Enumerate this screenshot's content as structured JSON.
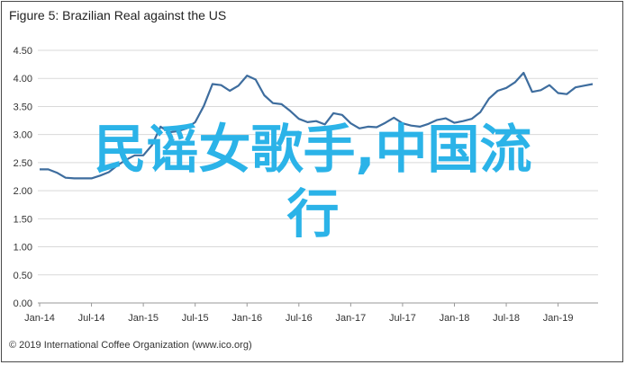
{
  "chart_data": {
    "type": "line",
    "title": "Figure 5: Brazilian Real against the US",
    "xlabel": "",
    "ylabel": "",
    "ylim": [
      0,
      4.5
    ],
    "yticks": [
      "0.00",
      "0.50",
      "1.00",
      "1.50",
      "2.00",
      "2.50",
      "3.00",
      "3.50",
      "4.00",
      "4.50"
    ],
    "xtick_labels": [
      "Jan-14",
      "Jul-14",
      "Jan-15",
      "Jul-15",
      "Jan-16",
      "Jul-16",
      "Jan-17",
      "Jul-17",
      "Jan-18",
      "Jul-18",
      "Jan-19"
    ],
    "grid": true,
    "line_color": "#3e6d9e",
    "series": [
      {
        "x": [
          "2014-01",
          "2014-02",
          "2014-03",
          "2014-04",
          "2014-05",
          "2014-06",
          "2014-07",
          "2014-08",
          "2014-09",
          "2014-10",
          "2014-11",
          "2014-12",
          "2015-01",
          "2015-02",
          "2015-03",
          "2015-04",
          "2015-05",
          "2015-06",
          "2015-07",
          "2015-08",
          "2015-09",
          "2015-10",
          "2015-11",
          "2015-12",
          "2016-01",
          "2016-02",
          "2016-03",
          "2016-04",
          "2016-05",
          "2016-06",
          "2016-07",
          "2016-08",
          "2016-09",
          "2016-10",
          "2016-11",
          "2016-12",
          "2017-01",
          "2017-02",
          "2017-03",
          "2017-04",
          "2017-05",
          "2017-06",
          "2017-07",
          "2017-08",
          "2017-09",
          "2017-10",
          "2017-11",
          "2017-12",
          "2018-01",
          "2018-02",
          "2018-03",
          "2018-04",
          "2018-05",
          "2018-06",
          "2018-07",
          "2018-08",
          "2018-09",
          "2018-10",
          "2018-11",
          "2018-12",
          "2019-01",
          "2019-02",
          "2019-03",
          "2019-04",
          "2019-05"
        ],
        "values": [
          2.38,
          2.38,
          2.32,
          2.23,
          2.22,
          2.22,
          2.22,
          2.27,
          2.33,
          2.45,
          2.55,
          2.63,
          2.63,
          2.81,
          3.14,
          3.04,
          3.06,
          3.11,
          3.22,
          3.51,
          3.9,
          3.88,
          3.78,
          3.87,
          4.05,
          3.98,
          3.7,
          3.56,
          3.54,
          3.42,
          3.28,
          3.22,
          3.24,
          3.18,
          3.38,
          3.35,
          3.2,
          3.11,
          3.14,
          3.13,
          3.21,
          3.3,
          3.2,
          3.16,
          3.14,
          3.19,
          3.26,
          3.29,
          3.21,
          3.24,
          3.28,
          3.4,
          3.64,
          3.78,
          3.83,
          3.93,
          4.1,
          3.76,
          3.79,
          3.88,
          3.74,
          3.72,
          3.84,
          3.87,
          3.9
        ]
      }
    ]
  },
  "footer": "© 2019 International Coffee Organization (www.ico.org)",
  "overlay": {
    "line1": "民谣女歌手,中国流",
    "line2": "行"
  }
}
